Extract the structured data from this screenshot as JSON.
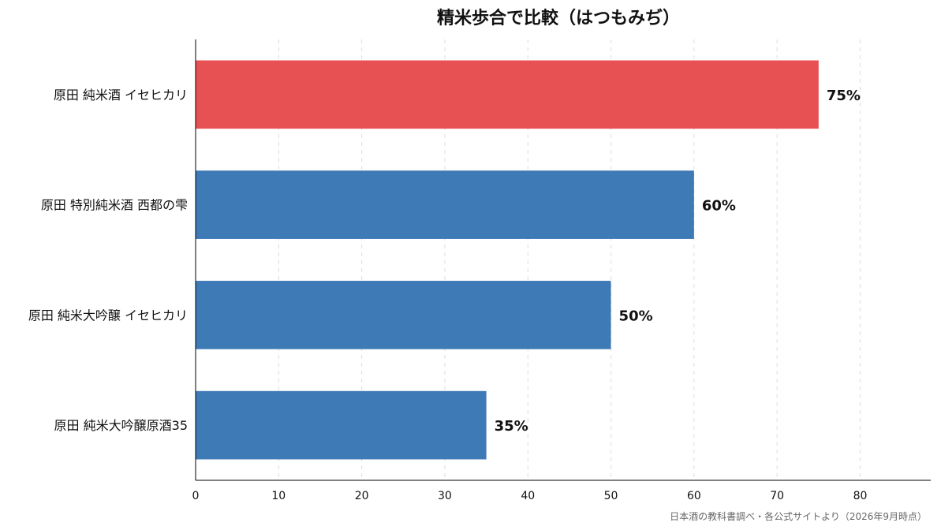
{
  "chart_data": {
    "type": "bar",
    "orientation": "horizontal",
    "title": "精米歩合で比較（はつもみぢ）",
    "categories": [
      "原田 純米酒 イセヒカリ",
      "原田 特別純米酒 西都の雫",
      "原田 純米大吟醸 イセヒカリ",
      "原田 純米大吟醸原酒35"
    ],
    "values": [
      75,
      60,
      50,
      35
    ],
    "value_labels": [
      "75%",
      "60%",
      "50%",
      "35%"
    ],
    "highlight_index": 0,
    "colors": {
      "highlight": "#e85153",
      "default": "#3e7ab6"
    },
    "xlim": [
      0,
      88.5
    ],
    "xticks": [
      0,
      10,
      20,
      30,
      40,
      50,
      60,
      70,
      80
    ],
    "xlabel": "",
    "ylabel": "",
    "grid": "x-dashed",
    "legend": "none"
  },
  "source_note": "日本酒の教科書調べ・各公式サイトより（2026年9月時点）"
}
